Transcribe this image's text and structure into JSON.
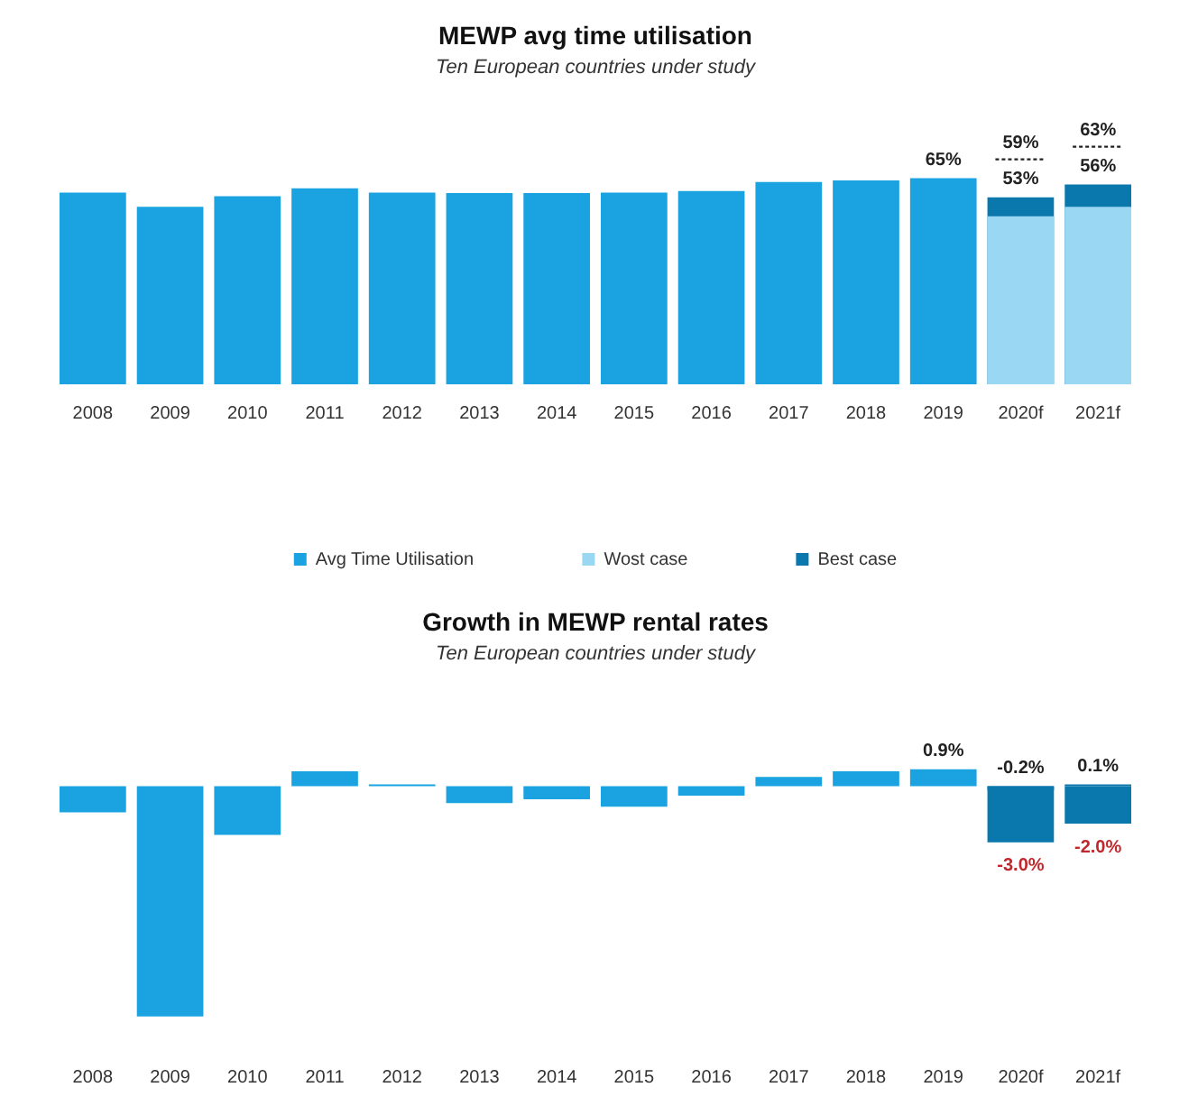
{
  "chart_data": [
    {
      "type": "bar",
      "title": "MEWP avg time utilisation",
      "subtitle": "Ten European countries under study",
      "categories": [
        "2008",
        "2009",
        "2010",
        "2011",
        "2012",
        "2013",
        "2014",
        "2015",
        "2016",
        "2017",
        "2018",
        "2019",
        "2020f",
        "2021f"
      ],
      "series": [
        {
          "name": "Avg Time Utilisation",
          "color": "#1aa3e0",
          "values": [
            60.5,
            56,
            59.3,
            61.8,
            60.5,
            60.3,
            60.3,
            60.5,
            61,
            63.8,
            64.3,
            65,
            null,
            null
          ],
          "value_labels": [
            null,
            null,
            null,
            null,
            null,
            null,
            null,
            null,
            null,
            null,
            null,
            "65%",
            null,
            null
          ]
        },
        {
          "name": "Wost case",
          "color": "#9ad7f2",
          "values": [
            null,
            null,
            null,
            null,
            null,
            null,
            null,
            null,
            null,
            null,
            null,
            null,
            53,
            56
          ],
          "value_labels": [
            null,
            null,
            null,
            null,
            null,
            null,
            null,
            null,
            null,
            null,
            null,
            null,
            "53%",
            "56%"
          ]
        },
        {
          "name": "Best case",
          "color": "#0b78ad",
          "values": [
            null,
            null,
            null,
            null,
            null,
            null,
            null,
            null,
            null,
            null,
            null,
            null,
            59,
            63
          ],
          "value_labels": [
            null,
            null,
            null,
            null,
            null,
            null,
            null,
            null,
            null,
            null,
            null,
            null,
            "59%",
            "63%"
          ]
        }
      ],
      "grid": false,
      "legend": "bottom"
    },
    {
      "type": "bar",
      "title": "Growth in MEWP rental rates",
      "subtitle": "Ten European countries under study",
      "categories": [
        "2008",
        "2009",
        "2010",
        "2011",
        "2012",
        "2013",
        "2014",
        "2015",
        "2016",
        "2017",
        "2018",
        "2019",
        "2020f",
        "2021f"
      ],
      "series": [
        {
          "color": "#1aa3e0",
          "values": [
            -1.4,
            -12.3,
            -2.6,
            0.8,
            0.1,
            -0.9,
            -0.7,
            -1.1,
            -0.5,
            0.5,
            0.8,
            0.9,
            null,
            null
          ],
          "value_labels": [
            null,
            null,
            null,
            null,
            null,
            null,
            null,
            null,
            null,
            null,
            null,
            "0.9%",
            null,
            null
          ]
        },
        {
          "color": "#0b78ad",
          "values": [
            null,
            null,
            null,
            null,
            null,
            null,
            null,
            null,
            null,
            null,
            null,
            null,
            -0.2,
            0.1
          ],
          "value_labels": [
            null,
            null,
            null,
            null,
            null,
            null,
            null,
            null,
            null,
            null,
            null,
            null,
            "-0.2%",
            "0.1%"
          ]
        },
        {
          "color": "#0b78ad",
          "values": [
            null,
            null,
            null,
            null,
            null,
            null,
            null,
            null,
            null,
            null,
            null,
            null,
            -3.0,
            -2.0
          ],
          "value_labels": [
            null,
            null,
            null,
            null,
            null,
            null,
            null,
            null,
            null,
            null,
            null,
            null,
            "-3.0%",
            "-2.0%"
          ]
        }
      ],
      "grid": false,
      "legend": false
    }
  ]
}
